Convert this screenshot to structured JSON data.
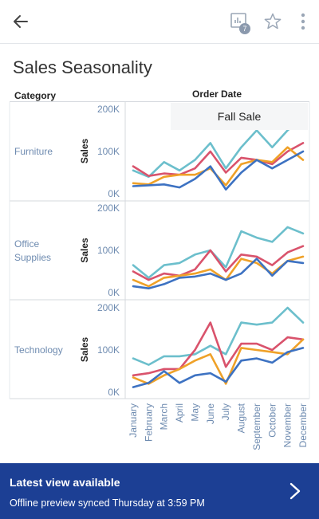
{
  "header": {
    "back_icon": "arrow-left-icon",
    "subscriptions_icon": "chart-alert-icon",
    "subscriptions_badge": "7",
    "favorite_icon": "star-outline-icon",
    "more_icon": "kebab-menu-icon"
  },
  "view": {
    "title": "Sales Seasonality",
    "category_header": "Category",
    "column_header": "Order Date",
    "annotation": "Fall Sale"
  },
  "colors": {
    "teal": "#6cbfcc",
    "red": "#d9536c",
    "orange": "#efa128",
    "blue": "#3d72c2",
    "axis_text": "#6e8bb0",
    "banner": "#1c3f94"
  },
  "chart_data": {
    "type": "line",
    "x": [
      "January",
      "February",
      "March",
      "April",
      "May",
      "June",
      "July",
      "August",
      "September",
      "October",
      "November",
      "December"
    ],
    "measure": "Sales",
    "y_ticks": [
      "0K",
      "100K",
      "200K"
    ],
    "ylim": [
      0,
      230000
    ],
    "grid": false,
    "panels": [
      {
        "category": "Furniture",
        "series": [
          {
            "color": "teal",
            "values": [
              55000,
              40000,
              75000,
              55000,
              80000,
              120000,
              60000,
              110000,
              150000,
              110000,
              150000,
              180000
            ]
          },
          {
            "color": "red",
            "values": [
              65000,
              42000,
              48000,
              45000,
              60000,
              100000,
              50000,
              85000,
              80000,
              70000,
              100000,
              120000
            ]
          },
          {
            "color": "orange",
            "values": [
              25000,
              22000,
              40000,
              45000,
              45000,
              60000,
              20000,
              70000,
              80000,
              75000,
              110000,
              80000
            ]
          },
          {
            "color": "blue",
            "values": [
              18000,
              20000,
              22000,
              15000,
              35000,
              65000,
              10000,
              50000,
              80000,
              60000,
              80000,
              100000
            ]
          }
        ]
      },
      {
        "category": "Office Supplies",
        "series": [
          {
            "color": "teal",
            "values": [
              65000,
              35000,
              65000,
              70000,
              90000,
              100000,
              60000,
              145000,
              130000,
              120000,
              155000,
              140000
            ]
          },
          {
            "color": "red",
            "values": [
              50000,
              30000,
              45000,
              40000,
              55000,
              100000,
              50000,
              90000,
              85000,
              65000,
              95000,
              110000
            ]
          },
          {
            "color": "orange",
            "values": [
              30000,
              15000,
              35000,
              40000,
              45000,
              55000,
              30000,
              80000,
              70000,
              45000,
              75000,
              85000
            ]
          },
          {
            "color": "blue",
            "values": [
              15000,
              10000,
              20000,
              35000,
              38000,
              45000,
              30000,
              45000,
              80000,
              40000,
              75000,
              70000
            ]
          }
        ]
      },
      {
        "category": "Technology",
        "series": [
          {
            "color": "teal",
            "values": [
              80000,
              65000,
              85000,
              85000,
              90000,
              110000,
              90000,
              165000,
              160000,
              165000,
              200000,
              165000
            ]
          },
          {
            "color": "red",
            "values": [
              40000,
              45000,
              55000,
              55000,
              100000,
              165000,
              60000,
              115000,
              115000,
              100000,
              130000,
              125000
            ]
          },
          {
            "color": "orange",
            "values": [
              35000,
              20000,
              40000,
              55000,
              75000,
              90000,
              20000,
              105000,
              100000,
              95000,
              90000,
              125000
            ]
          },
          {
            "color": "blue",
            "values": [
              12000,
              22000,
              50000,
              22000,
              40000,
              45000,
              25000,
              75000,
              80000,
              70000,
              95000,
              105000
            ]
          }
        ]
      }
    ]
  },
  "banner": {
    "title": "Latest view available",
    "subtitle": "Offline preview synced Thursday at 3:59 PM",
    "chevron_icon": "chevron-right-icon"
  }
}
